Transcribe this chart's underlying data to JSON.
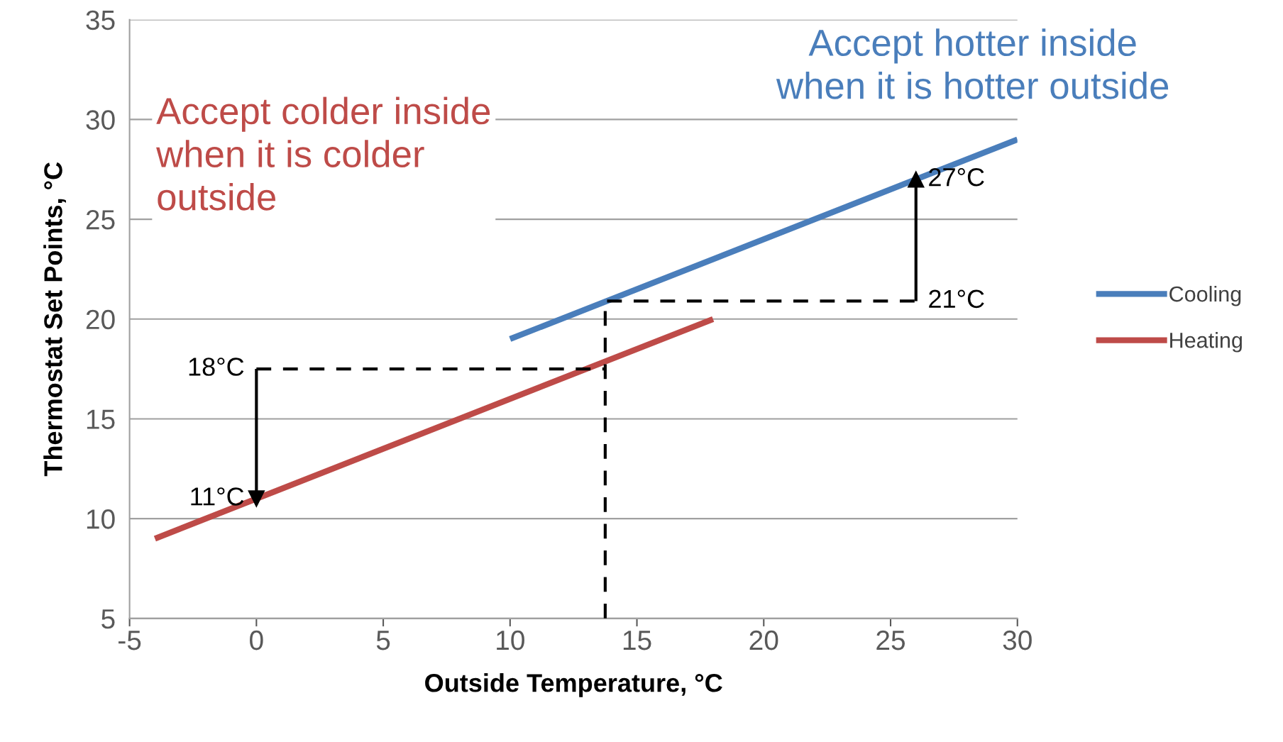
{
  "chart_data": {
    "type": "line",
    "xlabel": "Outside Temperature, °C",
    "ylabel": "Thermostat Set Points, °C",
    "xlim": [
      -5,
      30
    ],
    "xticks": [
      -5,
      0,
      5,
      10,
      15,
      20,
      25,
      30
    ],
    "ylim": [
      5,
      35
    ],
    "yticks": [
      5,
      10,
      15,
      20,
      25,
      30,
      35
    ],
    "grid": "y",
    "legend": "right",
    "series": [
      {
        "name": "Cooling",
        "color": "#4a7ebb",
        "x": [
          10,
          30
        ],
        "values": [
          19,
          29
        ]
      },
      {
        "name": "Heating",
        "color": "#be4b48",
        "x": [
          -4,
          18
        ],
        "values": [
          9,
          20
        ]
      },
      {
        "color": "#000000",
        "line_style": "dashed",
        "x": [
          13.75,
          13.75,
          26
        ],
        "values": [
          5,
          20.9,
          20.9
        ]
      },
      {
        "color": "#000000",
        "line_style": "dashed",
        "x": [
          0,
          13.75
        ],
        "values": [
          17.5,
          17.5
        ]
      },
      {
        "color": "#000000",
        "line_style": "solid",
        "marker": "triangle",
        "x": [
          26,
          26
        ],
        "values": [
          20.9,
          27
        ],
        "value_labels": [
          "21°C",
          "27°C"
        ]
      },
      {
        "color": "#000000",
        "line_style": "solid",
        "marker": "triangle",
        "x": [
          0,
          0
        ],
        "values": [
          17.5,
          11
        ],
        "value_labels": [
          "18°C",
          "11°C"
        ]
      }
    ],
    "annotations": [
      "Accept colder inside\nwhen it is colder\noutside",
      "Accept hotter inside\nwhen it is hotter outside"
    ]
  }
}
